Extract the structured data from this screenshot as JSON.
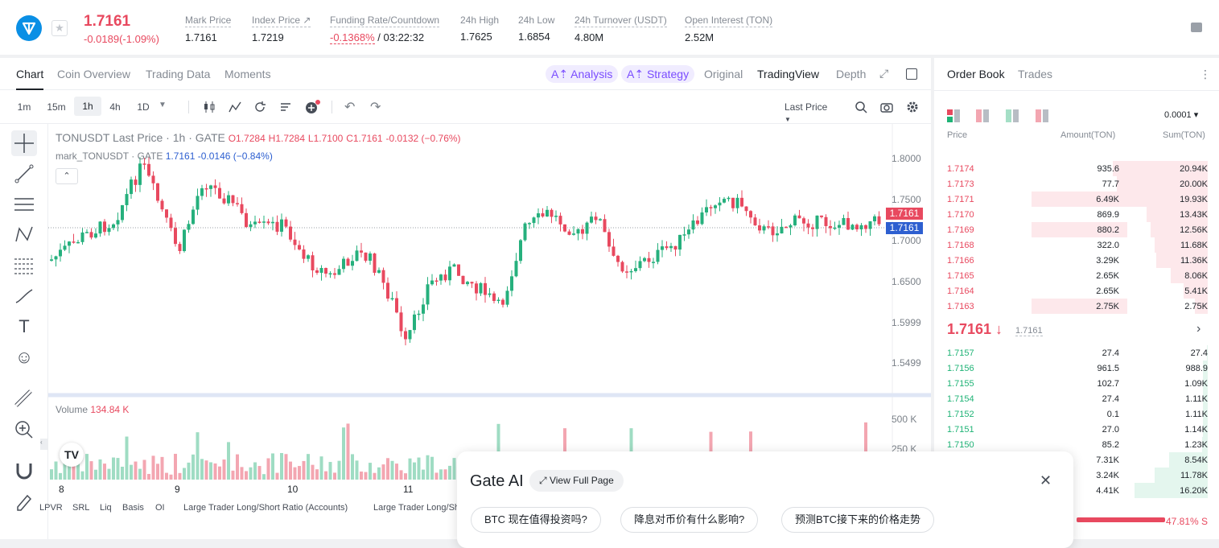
{
  "header": {
    "last_price": "1.7161",
    "change": "-0.0189(-1.09%)",
    "stats": [
      {
        "label": "Mark Price",
        "value": "1.7161"
      },
      {
        "label": "Index Price ↗",
        "value": "1.7219"
      },
      {
        "label": "Funding Rate/Countdown",
        "value_rate": "-0.1368%",
        "value_cd": " / 03:22:32"
      },
      {
        "label": "24h High",
        "value": "1.7625"
      },
      {
        "label": "24h Low",
        "value": "1.6854"
      },
      {
        "label": "24h Turnover (USDT)",
        "value": "4.80M"
      },
      {
        "label": "Open Interest (TON)",
        "value": "2.52M"
      }
    ]
  },
  "tabs": [
    "Chart",
    "Coin Overview",
    "Trading Data",
    "Moments"
  ],
  "ai_tabs": [
    "A⇡ Analysis",
    "A⇡ Strategy"
  ],
  "views": [
    "Original",
    "TradingView",
    "Depth"
  ],
  "intervals": [
    "1m",
    "15m",
    "1h",
    "4h",
    "1D"
  ],
  "last_price_sel": "Last Price",
  "legend": {
    "pair": "TONUSDT Last Price · 1h · GATE",
    "o": "O1.7284",
    "h": "H1.7284",
    "l": "L1.7100",
    "c": "C1.7161",
    "chg": "-0.0132 (−0.76%)",
    "mark": "mark_TONUSDT · GATE",
    "mark_v": "1.7161",
    "mark_chg": "-0.0146 (−0.84%)"
  },
  "price_axis": [
    "1.8000",
    "1.7500",
    "1.7000",
    "1.6500",
    "1.5999",
    "1.5499"
  ],
  "price_tags": [
    "1.7161",
    "1.7161"
  ],
  "volume": {
    "label": "Volume",
    "value": "134.84 K",
    "axis": [
      "500 K",
      "250 K"
    ]
  },
  "x_axis": [
    "8",
    "9",
    "10",
    "11"
  ],
  "indicators": [
    "LPVR",
    "SRL",
    "Liq",
    "Basis",
    "OI",
    "Large Trader Long/Short Ratio (Accounts)",
    "Large Trader Long/Sh"
  ],
  "book": {
    "tabs": [
      "Order Book",
      "Trades"
    ],
    "precision": "0.0001 ▾",
    "headers": [
      "Price",
      "Amount(TON)",
      "Sum(TON)"
    ],
    "asks": [
      {
        "p": "1.7174",
        "a": "935.6",
        "s": "20.94K",
        "af": 0,
        "sf": 0.98
      },
      {
        "p": "1.7173",
        "a": "77.7",
        "s": "20.00K",
        "af": 0,
        "sf": 0.94
      },
      {
        "p": "1.7171",
        "a": "6.49K",
        "s": "19.93K",
        "af": 0.34,
        "sf": 0.93
      },
      {
        "p": "1.7170",
        "a": "869.9",
        "s": "13.43K",
        "af": 0,
        "sf": 0.63
      },
      {
        "p": "1.7169",
        "a": "880.2",
        "s": "12.56K",
        "af": 0.34,
        "sf": 0.59
      },
      {
        "p": "1.7168",
        "a": "322.0",
        "s": "11.68K",
        "af": 0,
        "sf": 0.55
      },
      {
        "p": "1.7166",
        "a": "3.29K",
        "s": "11.36K",
        "af": 0,
        "sf": 0.53
      },
      {
        "p": "1.7165",
        "a": "2.65K",
        "s": "8.06K",
        "af": 0,
        "sf": 0.38
      },
      {
        "p": "1.7164",
        "a": "2.65K",
        "s": "5.41K",
        "af": 0,
        "sf": 0.25
      },
      {
        "p": "1.7163",
        "a": "2.75K",
        "s": "2.75K",
        "af": 0.34,
        "sf": 0.13
      }
    ],
    "mid": "1.7161 ↓",
    "mid_mark": "1.7161",
    "bids": [
      {
        "p": "1.7157",
        "a": "27.4",
        "s": "27.4",
        "sf": 0.01
      },
      {
        "p": "1.7156",
        "a": "961.5",
        "s": "988.9",
        "sf": 0.05
      },
      {
        "p": "1.7155",
        "a": "102.7",
        "s": "1.09K",
        "sf": 0.05
      },
      {
        "p": "1.7154",
        "a": "27.4",
        "s": "1.11K",
        "sf": 0.05
      },
      {
        "p": "1.7152",
        "a": "0.1",
        "s": "1.11K",
        "sf": 0.05
      },
      {
        "p": "1.7151",
        "a": "27.0",
        "s": "1.14K",
        "sf": 0.05
      },
      {
        "p": "1.7150",
        "a": "85.2",
        "s": "1.23K",
        "sf": 0.06
      },
      {
        "p": "",
        "a": "7.31K",
        "s": "8.54K",
        "sf": 0.4
      },
      {
        "p": "",
        "a": "3.24K",
        "s": "11.78K",
        "sf": 0.55
      },
      {
        "p": "",
        "a": "4.41K",
        "s": "16.20K",
        "sf": 0.76
      }
    ],
    "ratio": "47.81% S"
  },
  "ai": {
    "title": "Gate AI",
    "view_full": "View Full Page",
    "chips": [
      "BTC 现在值得投资吗?",
      "降息对币价有什么影响?",
      "预测BTC接下来的价格走势"
    ]
  }
}
